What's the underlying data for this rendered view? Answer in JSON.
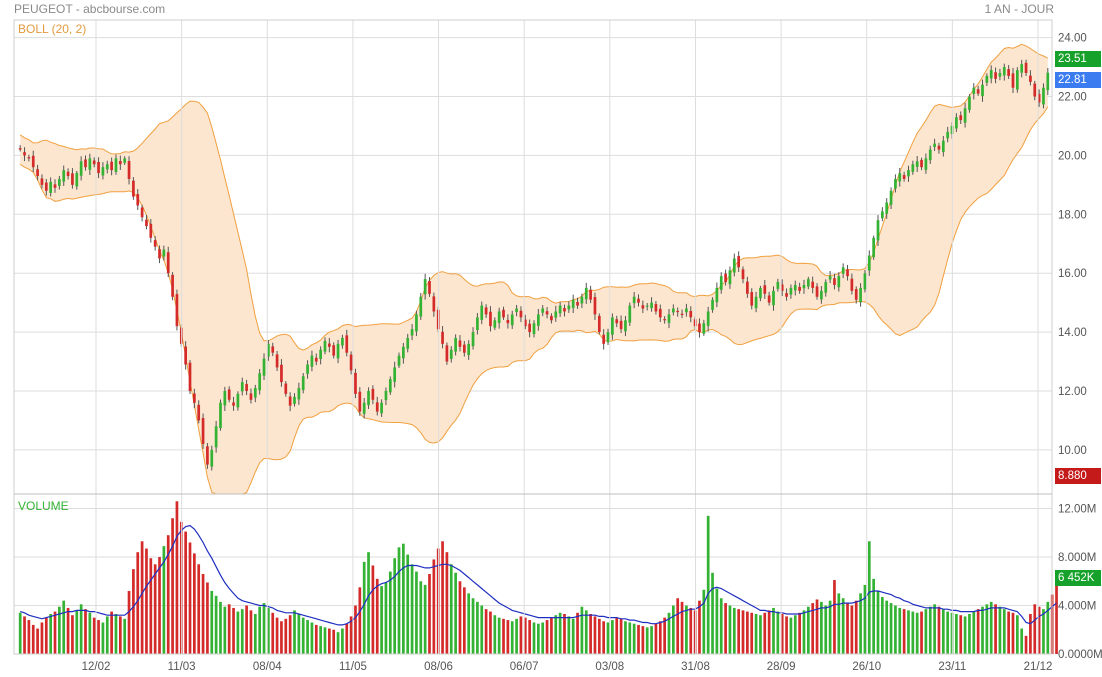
{
  "header": {
    "title": "PEUGEOT - abcbourse.com",
    "period": "1 AN - JOUR"
  },
  "colors": {
    "up": "#33b233",
    "down": "#d42a2a",
    "band_line": "#f0a040",
    "band_fill": "#fce6cf",
    "volume_ma": "#1f2fc0",
    "grid": "#dddddd",
    "tag_high": "#16a12a",
    "tag_last": "#3b7df0",
    "tag_low": "#c41a1a"
  },
  "chart_data": [
    {
      "type": "candlestick",
      "indicator_label": "BOLL (20, 2)",
      "ylim": [
        8.5,
        24.6
      ],
      "y_ticks": [
        "24.00",
        "22.00",
        "20.00",
        "18.00",
        "16.00",
        "14.00",
        "12.00",
        "10.00"
      ],
      "x_ticks": [
        "12/02",
        "11/03",
        "08/04",
        "11/05",
        "08/06",
        "06/07",
        "03/08",
        "31/08",
        "28/09",
        "26/10",
        "23/11",
        "21/12"
      ],
      "price_tags": {
        "high": "23.51",
        "last": "22.81",
        "low": "8.880"
      },
      "close": [
        20.2,
        20.0,
        19.9,
        19.6,
        19.3,
        19.0,
        18.8,
        19.1,
        18.9,
        19.2,
        19.5,
        19.3,
        19.0,
        19.4,
        19.8,
        19.6,
        19.9,
        19.7,
        19.4,
        19.6,
        19.7,
        19.5,
        19.9,
        19.7,
        19.9,
        19.2,
        18.6,
        18.3,
        17.9,
        17.6,
        17.2,
        16.9,
        16.5,
        16.8,
        16.0,
        15.2,
        14.2,
        13.6,
        12.9,
        12.0,
        11.6,
        11.0,
        10.2,
        9.5,
        10.0,
        10.8,
        11.6,
        12.0,
        11.7,
        11.5,
        11.9,
        12.3,
        12.0,
        11.7,
        12.1,
        12.6,
        13.1,
        13.6,
        13.3,
        12.8,
        12.3,
        11.9,
        11.5,
        11.8,
        12.1,
        12.5,
        12.9,
        13.2,
        13.0,
        13.4,
        13.7,
        13.5,
        13.2,
        13.6,
        13.8,
        13.3,
        12.7,
        11.9,
        11.3,
        11.6,
        12.0,
        11.7,
        11.3,
        11.6,
        12.0,
        12.4,
        12.8,
        13.2,
        13.5,
        13.8,
        14.1,
        14.6,
        15.2,
        15.8,
        15.3,
        14.7,
        14.1,
        13.6,
        13.0,
        13.4,
        13.8,
        13.5,
        13.3,
        13.6,
        14.0,
        14.5,
        14.9,
        14.6,
        14.2,
        14.4,
        14.7,
        14.5,
        14.3,
        14.6,
        14.8,
        14.5,
        14.2,
        14.0,
        14.3,
        14.6,
        14.8,
        14.6,
        14.4,
        14.7,
        14.9,
        14.7,
        14.9,
        15.1,
        14.9,
        15.2,
        15.5,
        15.1,
        14.6,
        14.0,
        13.6,
        14.0,
        14.5,
        14.3,
        14.1,
        14.4,
        14.9,
        15.2,
        15.0,
        14.8,
        14.9,
        15.0,
        14.7,
        14.5,
        14.4,
        14.6,
        14.8,
        14.7,
        14.6,
        14.8,
        14.5,
        14.2,
        14.0,
        14.3,
        14.7,
        15.1,
        15.5,
        15.9,
        15.7,
        16.1,
        16.5,
        16.2,
        15.8,
        15.3,
        14.9,
        15.2,
        15.5,
        15.3,
        15.0,
        15.4,
        15.7,
        15.4,
        15.2,
        15.5,
        15.6,
        15.4,
        15.6,
        15.8,
        15.5,
        15.2,
        15.4,
        15.7,
        15.9,
        15.6,
        15.9,
        16.2,
        15.9,
        15.4,
        15.1,
        15.5,
        16.0,
        16.6,
        17.2,
        17.8,
        18.1,
        18.4,
        18.8,
        19.2,
        19.4,
        19.2,
        19.5,
        19.7,
        19.8,
        19.6,
        19.9,
        20.2,
        20.4,
        20.2,
        20.5,
        20.8,
        21.0,
        21.3,
        21.2,
        21.6,
        22.0,
        22.3,
        22.1,
        22.4,
        22.7,
        22.9,
        22.6,
        22.8,
        23.0,
        22.7,
        22.3,
        22.9,
        23.1,
        22.8,
        22.5,
        22.0,
        21.8,
        22.3,
        22.81
      ]
    },
    {
      "type": "bar",
      "label": "VOLUME",
      "ylim": [
        0,
        13.2
      ],
      "unit": "M",
      "y_ticks": [
        "12.00M",
        "8.000M",
        "4.000M",
        "0.0000M"
      ],
      "last_tag": "6 452K",
      "values": [
        3.4,
        3.1,
        2.8,
        2.4,
        2.1,
        2.6,
        3.0,
        3.3,
        3.5,
        3.9,
        4.4,
        3.8,
        3.2,
        3.6,
        4.1,
        3.7,
        3.4,
        3.0,
        2.8,
        2.6,
        3.1,
        3.5,
        3.3,
        3.1,
        2.9,
        5.2,
        7.0,
        8.4,
        9.3,
        8.7,
        7.9,
        7.4,
        8.0,
        8.9,
        9.8,
        11.2,
        12.6,
        10.9,
        10.1,
        9.2,
        8.3,
        7.4,
        6.6,
        5.9,
        5.2,
        4.8,
        4.3,
        3.9,
        4.1,
        3.8,
        3.5,
        3.7,
        4.0,
        3.6,
        3.3,
        3.9,
        4.2,
        3.8,
        3.4,
        3.0,
        2.7,
        2.9,
        3.2,
        3.6,
        3.3,
        3.0,
        2.8,
        2.6,
        2.4,
        2.3,
        2.2,
        2.1,
        2.0,
        1.8,
        2.1,
        2.5,
        3.1,
        4.0,
        5.5,
        7.6,
        8.4,
        7.3,
        6.2,
        5.6,
        5.9,
        6.8,
        7.9,
        8.8,
        9.1,
        8.2,
        7.4,
        6.8,
        6.0,
        5.7,
        6.6,
        7.8,
        8.7,
        9.3,
        8.4,
        7.4,
        6.7,
        6.0,
        5.5,
        5.0,
        4.6,
        4.3,
        4.0,
        3.7,
        3.5,
        3.2,
        3.0,
        2.9,
        2.8,
        2.7,
        2.9,
        3.1,
        3.0,
        2.8,
        2.6,
        2.5,
        2.6,
        2.8,
        3.0,
        3.2,
        3.4,
        3.3,
        3.1,
        2.9,
        3.4,
        3.9,
        3.6,
        3.3,
        3.1,
        2.9,
        2.7,
        2.6,
        2.8,
        3.0,
        2.9,
        2.7,
        2.6,
        2.5,
        2.4,
        2.3,
        2.2,
        2.3,
        2.5,
        2.7,
        3.0,
        3.4,
        4.0,
        4.6,
        4.3,
        4.0,
        3.8,
        3.6,
        4.4,
        5.3,
        11.4,
        6.7,
        5.4,
        4.6,
        4.2,
        4.0,
        3.8,
        3.7,
        3.6,
        3.5,
        3.4,
        3.3,
        3.2,
        3.4,
        3.6,
        3.8,
        3.5,
        3.3,
        3.1,
        3.0,
        3.2,
        3.4,
        3.6,
        3.9,
        4.2,
        4.5,
        4.3,
        4.0,
        4.4,
        6.1,
        5.0,
        4.6,
        4.2,
        4.0,
        4.4,
        5.0,
        5.7,
        9.3,
        6.2,
        5.2,
        4.7,
        4.4,
        4.2,
        4.0,
        3.8,
        3.7,
        3.6,
        3.5,
        3.4,
        3.5,
        3.7,
        3.9,
        4.1,
        3.9,
        3.7,
        3.5,
        3.4,
        3.3,
        3.2,
        3.1,
        3.3,
        3.5,
        3.7,
        3.9,
        4.1,
        4.3,
        4.1,
        3.9,
        3.7,
        3.5,
        3.4,
        3.2,
        2.1,
        1.5,
        3.3,
        4.1,
        3.9,
        3.7,
        4.3,
        4.9,
        6.452
      ],
      "ma": [
        3.5,
        3.4,
        3.2,
        3.1,
        3.0,
        2.9,
        3.0,
        3.1,
        3.2,
        3.3,
        3.4,
        3.5,
        3.5,
        3.6,
        3.6,
        3.6,
        3.5,
        3.5,
        3.4,
        3.3,
        3.2,
        3.2,
        3.2,
        3.2,
        3.2,
        3.5,
        3.9,
        4.4,
        5.0,
        5.6,
        6.1,
        6.6,
        7.1,
        7.6,
        8.2,
        8.9,
        9.7,
        10.2,
        10.5,
        10.6,
        10.3,
        9.8,
        9.2,
        8.5,
        7.9,
        7.2,
        6.5,
        5.9,
        5.4,
        5.0,
        4.6,
        4.4,
        4.3,
        4.2,
        4.1,
        4.0,
        4.0,
        3.9,
        3.8,
        3.6,
        3.5,
        3.4,
        3.4,
        3.4,
        3.3,
        3.2,
        3.1,
        3.0,
        2.9,
        2.8,
        2.7,
        2.6,
        2.5,
        2.4,
        2.4,
        2.5,
        2.7,
        3.0,
        3.5,
        4.1,
        4.8,
        5.3,
        5.6,
        5.8,
        5.9,
        6.1,
        6.4,
        6.8,
        7.1,
        7.3,
        7.3,
        7.3,
        7.2,
        7.1,
        7.1,
        7.2,
        7.3,
        7.4,
        7.4,
        7.3,
        7.1,
        6.9,
        6.6,
        6.3,
        6.0,
        5.7,
        5.4,
        5.1,
        4.8,
        4.5,
        4.2,
        4.0,
        3.8,
        3.6,
        3.5,
        3.4,
        3.3,
        3.2,
        3.1,
        3.0,
        3.0,
        3.0,
        3.0,
        3.0,
        3.0,
        3.0,
        3.0,
        3.0,
        3.1,
        3.2,
        3.2,
        3.2,
        3.2,
        3.1,
        3.1,
        3.0,
        3.0,
        3.0,
        2.9,
        2.9,
        2.8,
        2.8,
        2.7,
        2.6,
        2.6,
        2.5,
        2.5,
        2.6,
        2.7,
        2.9,
        3.1,
        3.3,
        3.5,
        3.6,
        3.7,
        3.7,
        3.9,
        4.2,
        5.0,
        5.4,
        5.5,
        5.4,
        5.2,
        5.0,
        4.8,
        4.6,
        4.4,
        4.2,
        4.0,
        3.8,
        3.6,
        3.6,
        3.5,
        3.5,
        3.4,
        3.4,
        3.3,
        3.3,
        3.3,
        3.3,
        3.4,
        3.5,
        3.6,
        3.7,
        3.8,
        3.8,
        3.9,
        4.1,
        4.1,
        4.2,
        4.2,
        4.2,
        4.3,
        4.4,
        4.6,
        5.1,
        5.2,
        5.2,
        5.1,
        5.0,
        4.9,
        4.7,
        4.6,
        4.4,
        4.3,
        4.1,
        4.0,
        3.9,
        3.8,
        3.8,
        3.8,
        3.8,
        3.7,
        3.7,
        3.6,
        3.6,
        3.5,
        3.5,
        3.5,
        3.5,
        3.6,
        3.6,
        3.7,
        3.8,
        3.8,
        3.8,
        3.8,
        3.7,
        3.6,
        3.5,
        3.1,
        2.6,
        2.5,
        2.8,
        3.1,
        3.3,
        3.6,
        3.9,
        4.2
      ]
    }
  ]
}
